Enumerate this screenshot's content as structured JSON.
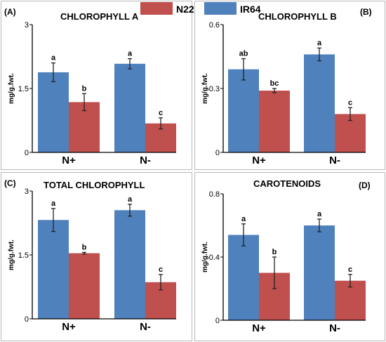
{
  "legend": {
    "items": [
      {
        "label": "N22",
        "color": "#c0504d"
      },
      {
        "label": "IR64",
        "color": "#4f81bd"
      }
    ]
  },
  "colors": {
    "axis": "#000000",
    "error_bar": "#222222",
    "panel_border": "#b8b8b8"
  },
  "chart_data": [
    {
      "type": "bar",
      "panel": "(A)",
      "title": "CHLOROPHYLL A",
      "ylabel": "mg/g.fwt.",
      "ylim": [
        0,
        3
      ],
      "yticks": [
        0,
        1.5,
        3
      ],
      "ytick_labels": [
        "0",
        "1.5",
        "3"
      ],
      "categories": [
        "N+",
        "N-"
      ],
      "series": [
        {
          "name": "IR64",
          "color": "#4f81bd",
          "values": [
            1.88,
            2.08
          ],
          "errors": [
            0.22,
            0.12
          ],
          "labels": [
            "a",
            "a"
          ]
        },
        {
          "name": "N22",
          "color": "#c0504d",
          "values": [
            1.18,
            0.68
          ],
          "errors": [
            0.2,
            0.13
          ],
          "labels": [
            "b",
            "c"
          ]
        }
      ]
    },
    {
      "type": "bar",
      "panel": "(B)",
      "title": "CHLOROPHYLL B",
      "ylabel": "mg/g.fwt.",
      "ylim": [
        0,
        0.6
      ],
      "yticks": [
        0,
        0.3,
        0.6
      ],
      "ytick_labels": [
        "0",
        "0.3",
        "0.6"
      ],
      "categories": [
        "N+",
        "N-"
      ],
      "series": [
        {
          "name": "IR64",
          "color": "#4f81bd",
          "values": [
            0.39,
            0.46
          ],
          "errors": [
            0.05,
            0.03
          ],
          "labels": [
            "ab",
            "a"
          ]
        },
        {
          "name": "N22",
          "color": "#c0504d",
          "values": [
            0.29,
            0.18
          ],
          "errors": [
            0.01,
            0.03
          ],
          "labels": [
            "bc",
            "c"
          ]
        }
      ]
    },
    {
      "type": "bar",
      "panel": "(C)",
      "title": "TOTAL CHLOROPHYLL",
      "ylabel": "mg/g.fwt.",
      "ylim": [
        0,
        3
      ],
      "yticks": [
        0,
        1.5,
        3
      ],
      "ytick_labels": [
        "0",
        "1.5",
        "3"
      ],
      "categories": [
        "N+",
        "N-"
      ],
      "series": [
        {
          "name": "IR64",
          "color": "#4f81bd",
          "values": [
            2.32,
            2.55
          ],
          "errors": [
            0.27,
            0.14
          ],
          "labels": [
            "a",
            "a"
          ]
        },
        {
          "name": "N22",
          "color": "#c0504d",
          "values": [
            1.54,
            0.86
          ],
          "errors": [
            0.02,
            0.18
          ],
          "labels": [
            "b",
            "c"
          ]
        }
      ]
    },
    {
      "type": "bar",
      "panel": "(D)",
      "title": "CAROTENOIDS",
      "ylabel": "mg/g.fwt.",
      "ylim": [
        0,
        0.8
      ],
      "yticks": [
        0,
        0.4,
        0.8
      ],
      "ytick_labels": [
        "0",
        "0.4",
        "0.8"
      ],
      "categories": [
        "N+",
        "N-"
      ],
      "series": [
        {
          "name": "IR64",
          "color": "#4f81bd",
          "values": [
            0.54,
            0.6
          ],
          "errors": [
            0.07,
            0.04
          ],
          "labels": [
            "a",
            "a"
          ]
        },
        {
          "name": "N22",
          "color": "#c0504d",
          "values": [
            0.3,
            0.25
          ],
          "errors": [
            0.1,
            0.04
          ],
          "labels": [
            "b",
            "c"
          ]
        }
      ]
    }
  ]
}
